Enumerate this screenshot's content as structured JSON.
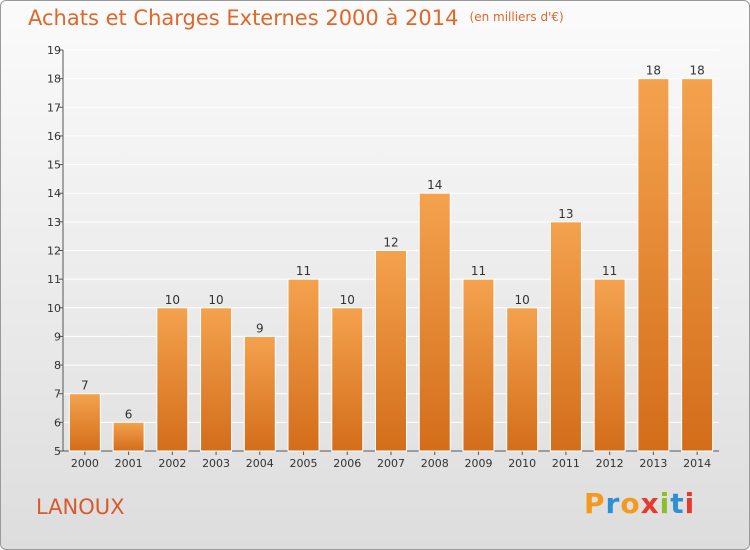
{
  "chart_data": {
    "type": "bar",
    "title": "Achats et Charges Externes 2000 à 2014",
    "subtitle": "(en milliers d'€)",
    "categories": [
      "2000",
      "2001",
      "2002",
      "2003",
      "2004",
      "2005",
      "2006",
      "2007",
      "2008",
      "2009",
      "2010",
      "2011",
      "2012",
      "2013",
      "2014"
    ],
    "values": [
      7,
      6,
      10,
      10,
      9,
      11,
      10,
      12,
      14,
      11,
      10,
      13,
      11,
      18,
      18
    ],
    "data_labels": [
      "7",
      "6",
      "10",
      "10",
      "9",
      "11",
      "10",
      "12",
      "14",
      "11",
      "10",
      "13",
      "11",
      "18",
      "18"
    ],
    "y_ticks": [
      "5",
      "6",
      "7",
      "8",
      "9",
      "10",
      "11",
      "12",
      "13",
      "14",
      "15",
      "16",
      "17",
      "18",
      "19"
    ],
    "ylim": [
      5,
      19
    ],
    "grid": true,
    "bar_color_top": "#f4a24e",
    "bar_color_bottom": "#d36d1a"
  },
  "footer": {
    "commune": "LANOUX",
    "logo_letters": [
      "P",
      "r",
      "o",
      "x",
      "i",
      "t",
      "i"
    ],
    "logo_colors": [
      "#f39a1e",
      "#2f8fd3",
      "#f39a1e",
      "#e53b2c",
      "#8bbf2a",
      "#2f8fd3",
      "#e53b2c"
    ]
  }
}
